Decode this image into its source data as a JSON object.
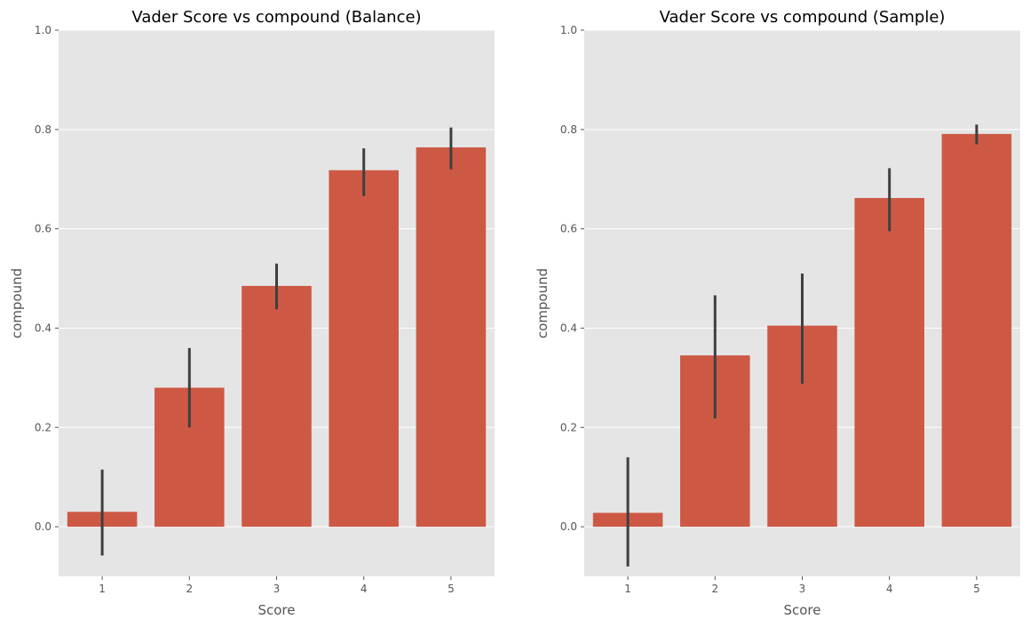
{
  "colors": {
    "bar": "#cd5945",
    "panel_bg": "#e5e5e5",
    "grid": "#ffffff",
    "error_bar": "#3f3f3f"
  },
  "chart_data": [
    {
      "type": "bar",
      "title": "Vader Score vs compound (Balance)",
      "xlabel": "Score",
      "ylabel": "compound",
      "categories": [
        "1",
        "2",
        "3",
        "4",
        "5"
      ],
      "values": [
        0.03,
        0.28,
        0.485,
        0.718,
        0.764
      ],
      "error_low": [
        -0.058,
        0.2,
        0.438,
        0.666,
        0.72
      ],
      "error_high": [
        0.115,
        0.36,
        0.53,
        0.762,
        0.804
      ],
      "ylim": [
        -0.1,
        1.0
      ],
      "yticks": [
        "0.0",
        "0.2",
        "0.4",
        "0.6",
        "0.8",
        "1.0"
      ],
      "grid": true
    },
    {
      "type": "bar",
      "title": "Vader Score vs compound (Sample)",
      "xlabel": "Score",
      "ylabel": "compound",
      "categories": [
        "1",
        "2",
        "3",
        "4",
        "5"
      ],
      "values": [
        0.028,
        0.345,
        0.405,
        0.662,
        0.791
      ],
      "error_low": [
        -0.08,
        0.218,
        0.288,
        0.595,
        0.77
      ],
      "error_high": [
        0.14,
        0.466,
        0.51,
        0.722,
        0.81
      ],
      "ylim": [
        -0.1,
        1.0
      ],
      "yticks": [
        "0.0",
        "0.2",
        "0.4",
        "0.6",
        "0.8",
        "1.0"
      ],
      "grid": true
    }
  ]
}
